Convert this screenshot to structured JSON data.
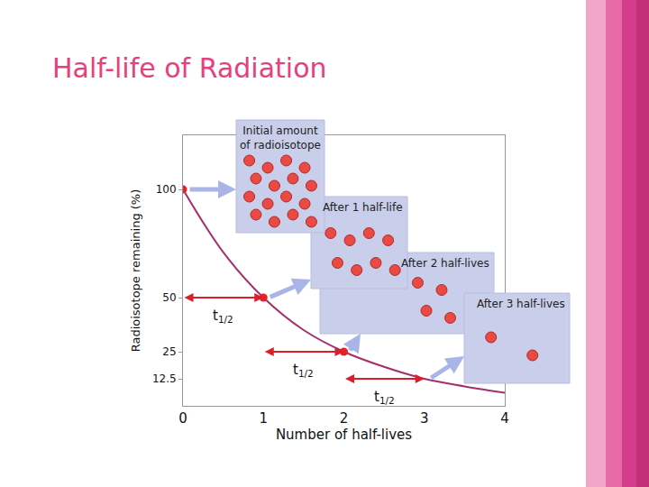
{
  "chart_data": {
    "type": "line",
    "title": "Half-life of Radiation",
    "x_label": "Number of half-lives",
    "y_label": "Radioisotope remaining (%)",
    "x": [
      0,
      0.5,
      1,
      1.5,
      2,
      2.5,
      3,
      3.5,
      4
    ],
    "values": [
      100,
      71,
      50,
      35,
      25,
      18,
      12.5,
      9,
      6
    ],
    "color": "#a3306e",
    "line_style": "solid",
    "xlim": [
      0,
      4
    ],
    "xticks": [
      0,
      1,
      2,
      3,
      4
    ],
    "ylim": [
      0,
      125
    ],
    "yticks": [
      12.5,
      25,
      50,
      100
    ],
    "grid": false,
    "highlighted_points": {
      "x": [
        0,
        1,
        2
      ],
      "values": [
        100,
        50,
        25
      ],
      "color": "#e8202a"
    },
    "half_life_arrows": [
      {
        "x_start": 0,
        "x_end": 1,
        "y": 50,
        "label": "t",
        "subscript": "1/2"
      },
      {
        "x_start": 1,
        "x_end": 2,
        "y": 25,
        "label": "t",
        "subscript": "1/2"
      },
      {
        "x_start": 2,
        "x_end": 3,
        "y": 12.5,
        "label": "t",
        "subscript": "1/2"
      }
    ],
    "annotations": [
      {
        "text": "Initial amount of radioisotope",
        "atoms": 16,
        "x": 0
      },
      {
        "text": "After 1 half-life",
        "atoms": 8,
        "x": 1
      },
      {
        "text": "After 2 half-lives",
        "atoms": 4,
        "x": 2
      },
      {
        "text": "After 3 half-lives",
        "atoms": 2,
        "x": 3
      }
    ]
  }
}
